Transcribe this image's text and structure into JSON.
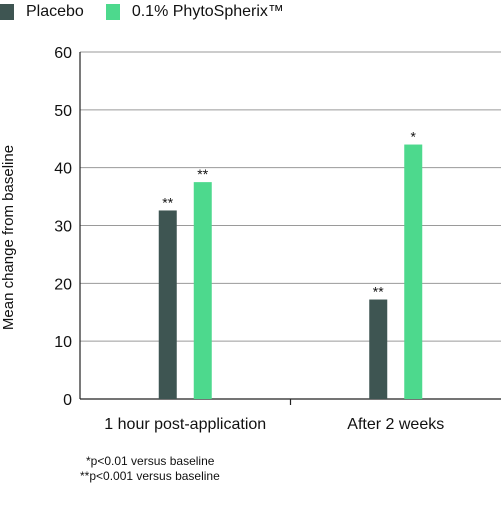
{
  "legend": {
    "placebo": "Placebo",
    "phyto": "0.1% PhytoSpherix™"
  },
  "colors": {
    "placebo": "#3e5552",
    "phyto": "#4dd98d",
    "grid": "#9a9a9a",
    "axis": "#222222"
  },
  "chart_data": {
    "type": "bar",
    "categories": [
      "1 hour post-application",
      "After 2 weeks"
    ],
    "series": [
      {
        "name": "Placebo",
        "values": [
          32.6,
          17.2
        ],
        "annotations": [
          "**",
          "**"
        ]
      },
      {
        "name": "0.1% PhytoSpherix™",
        "values": [
          37.5,
          44.0
        ],
        "annotations": [
          "**",
          "*"
        ]
      }
    ],
    "ylabel": "Mean change from baseline",
    "ylim": [
      0,
      60
    ],
    "yticks": [
      0,
      10,
      20,
      30,
      40,
      50,
      60
    ],
    "grid": true,
    "legend_position": "top-left"
  },
  "footnotes": {
    "note1": "*p<0.01 versus baseline",
    "note2": "**p<0.001 versus baseline"
  }
}
